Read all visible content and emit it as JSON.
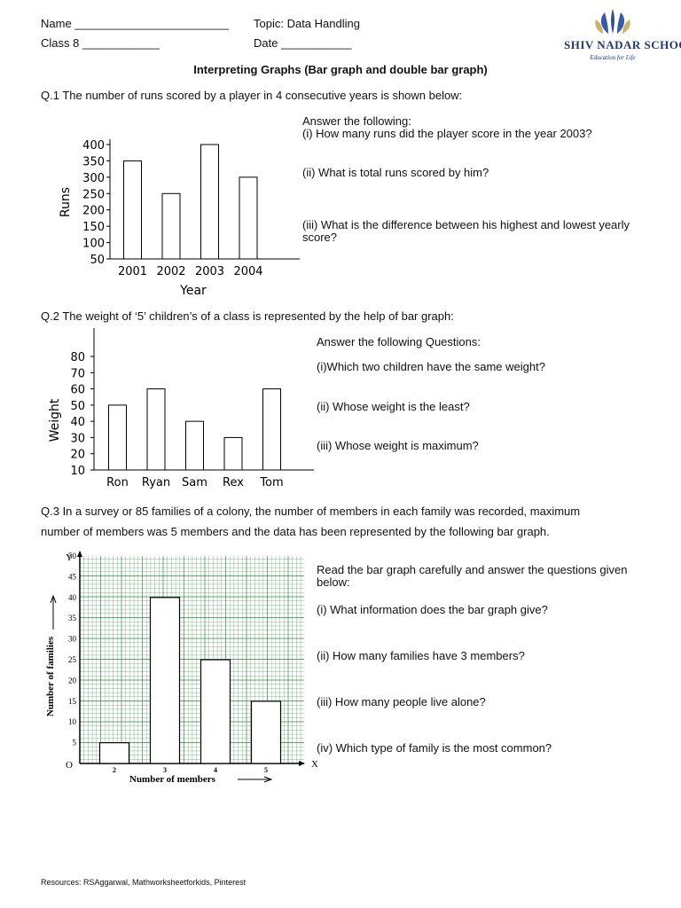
{
  "header": {
    "name_label": "Name ________________________",
    "class_label": "Class 8 ____________",
    "topic_label": "Topic: Data Handling",
    "date_label": "Date ___________",
    "logo_name": "SHIV NADAR SCHOOL",
    "logo_tagline": "Education for Life"
  },
  "title": "Interpreting Graphs (Bar graph and double bar graph)",
  "q1": {
    "prompt": "Q.1 The number of runs scored by a player in 4 consecutive years is shown below:",
    "answer_intro": "Answer the following:",
    "questions": [
      "(i) How many runs did the player score in the year 2003?",
      "(ii) What is total runs scored by him?",
      "(iii) What is the difference between his highest and lowest yearly",
      "score?"
    ]
  },
  "q2": {
    "prompt": "Q.2 The weight of ‘5’ children’s of a class is represented by the help of bar graph:",
    "answer_intro": "Answer the following Questions:",
    "questions": [
      "(i)Which two children have the same weight?",
      "(ii) Whose weight is the least?",
      "(iii) Whose weight is maximum?"
    ]
  },
  "q3": {
    "prompt_line1": "Q.3 In a survey or 85 families of a colony, the number of members in each family was recorded, maximum",
    "prompt_line2": "number of members was 5 members and the data has been represented by the following bar graph.",
    "answer_intro_1": "Read the bar graph carefully and answer the questions given",
    "answer_intro_2": "below:",
    "questions": [
      "(i) What information does the bar graph give?",
      "(ii) How many families have 3 members?",
      "(iii) How many people live alone?",
      "(iv) Which type of family is the most common?"
    ]
  },
  "footer": "Resources: RSAggarwal, Mathworksheetforkids, Pinterest",
  "chart_data": [
    {
      "type": "bar",
      "categories": [
        "2001",
        "2002",
        "2003",
        "2004"
      ],
      "values": [
        350,
        250,
        400,
        300
      ],
      "xlabel": "Year",
      "ylabel": "Runs",
      "yticks": [
        50,
        100,
        150,
        200,
        250,
        300,
        350,
        400
      ],
      "ylim": [
        50,
        400
      ]
    },
    {
      "type": "bar",
      "categories": [
        "Ron",
        "Ryan",
        "Sam",
        "Rex",
        "Tom"
      ],
      "values": [
        50,
        60,
        40,
        30,
        60
      ],
      "ylabel": "Weight",
      "yticks": [
        10,
        20,
        30,
        40,
        50,
        60,
        70,
        80
      ],
      "ylim": [
        10,
        80
      ]
    },
    {
      "type": "bar",
      "categories": [
        "2",
        "3",
        "4",
        "5"
      ],
      "values": [
        5,
        40,
        25,
        15
      ],
      "xlabel": "Number of members",
      "ylabel": "Number of families",
      "y_axis_letter": "Y",
      "x_axis_letter": "X",
      "origin_label": "O",
      "yticks": [
        5,
        10,
        15,
        20,
        25,
        30,
        35,
        40,
        45,
        50
      ],
      "ylim": [
        0,
        50
      ],
      "grid": true,
      "grid_color": "#2e8b3a"
    }
  ]
}
